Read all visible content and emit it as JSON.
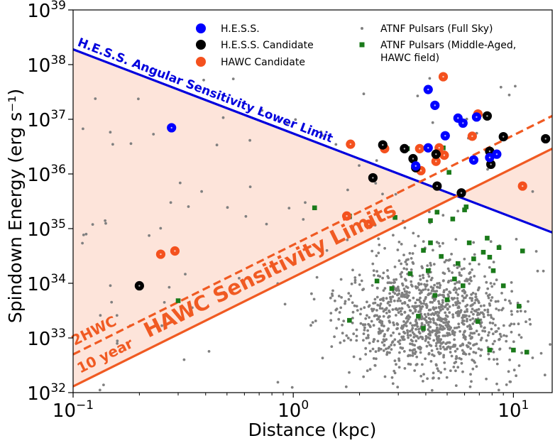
{
  "chart_data": {
    "type": "scatter",
    "xscale": "log",
    "yscale": "log",
    "xlim": [
      0.1,
      15
    ],
    "ylim": [
      1e+32,
      1e+39
    ],
    "xlabel": "Distance (kpc)",
    "ylabel": "Spindown Energy (erg s⁻¹)",
    "xticks": [
      {
        "value": 0.1,
        "base": "10",
        "exp": "−1"
      },
      {
        "value": 1,
        "base": "10",
        "exp": "0"
      },
      {
        "value": 10,
        "base": "10",
        "exp": "1"
      }
    ],
    "yticks": [
      {
        "value": 1e+32,
        "base": "10",
        "exp": "32"
      },
      {
        "value": 1e+33,
        "base": "10",
        "exp": "33"
      },
      {
        "value": 1e+34,
        "base": "10",
        "exp": "34"
      },
      {
        "value": 1e+35,
        "base": "10",
        "exp": "35"
      },
      {
        "value": 1e+36,
        "base": "10",
        "exp": "36"
      },
      {
        "value": 1e+37,
        "base": "10",
        "exp": "37"
      },
      {
        "value": 1e+38,
        "base": "10",
        "exp": "38"
      },
      {
        "value": 1e+39,
        "base": "10",
        "exp": "39"
      }
    ],
    "legend": {
      "placement": "top",
      "entries": [
        {
          "label": "H.E.S.S.",
          "marker": "circle",
          "color": "#0000ff"
        },
        {
          "label": "H.E.S.S. Candidate",
          "marker": "circle",
          "color": "#000000"
        },
        {
          "label": "HAWC Candidate",
          "marker": "circle",
          "color": "#f4511e"
        },
        {
          "label": "ATNF Pulsars (Full Sky)",
          "marker": "dot",
          "color": "#808080"
        },
        {
          "label": "ATNF Pulsars (Middle-Aged,",
          "label2": "HAWC field)",
          "marker": "square",
          "color": "#1a7a1a"
        }
      ]
    },
    "lines": [
      {
        "name": "H.E.S.S. Angular Sensitivity Lower Limit",
        "label": "H.E.S.S. Angular Sensitivity Lower Limit",
        "color": "#0000dd",
        "style": "solid",
        "x": [
          0.1,
          15
        ],
        "y": [
          1.9e+38,
          8.5e+34
        ]
      },
      {
        "name": "2HWC",
        "label": "2HWC",
        "color": "#f05a22",
        "style": "dashed",
        "x": [
          0.1,
          15
        ],
        "y": [
          5e+32,
          1.15e+37
        ]
      },
      {
        "name": "10 year",
        "label": "10 year",
        "color": "#f05a22",
        "style": "solid",
        "x": [
          0.1,
          15
        ],
        "y": [
          1.3e+32,
          2.9e+36
        ]
      }
    ],
    "annotations": [
      {
        "text": "HAWC Sensitivity Limits",
        "color": "#f05a22"
      }
    ],
    "shaded_region": {
      "color": "#fde4da",
      "between": [
        "H.E.S.S. Angular Sensitivity Lower Limit",
        "10 year"
      ]
    },
    "series": [
      {
        "name": "H.E.S.S.",
        "color": "#0000ff",
        "points": [
          [
            0.28,
            7e+36
          ],
          [
            4.1,
            3.5e+37
          ],
          [
            4.4,
            1.8e+37
          ],
          [
            5.9,
            8.5e+36
          ],
          [
            5.6,
            1.05e+37
          ],
          [
            4.9,
            5e+36
          ],
          [
            4.1,
            3e+36
          ],
          [
            6.8,
            1.1e+37
          ],
          [
            6.6,
            1.8e+36
          ],
          [
            8.4,
            2.3e+36
          ],
          [
            7.8,
            2e+36
          ],
          [
            3.6,
            1.4e+36
          ]
        ]
      },
      {
        "name": "H.E.S.S. Candidate",
        "color": "#000000",
        "points": [
          [
            0.2,
            9e+33
          ],
          [
            2.3,
            8.5e+35
          ],
          [
            2.55,
            3.4e+36
          ],
          [
            3.2,
            2.9e+36
          ],
          [
            3.5,
            1.9e+36
          ],
          [
            3.6,
            1.3e+36
          ],
          [
            4.45,
            2.3e+36
          ],
          [
            4.5,
            6e+35
          ],
          [
            5.8,
            4.5e+35
          ],
          [
            7.6,
            1.15e+37
          ],
          [
            7.8,
            2.6e+36
          ],
          [
            7.9,
            1.5e+36
          ],
          [
            9.0,
            4.8e+36
          ],
          [
            14.0,
            4.4e+36
          ]
        ]
      },
      {
        "name": "HAWC Candidate",
        "color": "#f4511e",
        "points": [
          [
            0.25,
            3.4e+34
          ],
          [
            0.29,
            3.9e+34
          ],
          [
            1.75,
            1.7e+35
          ],
          [
            1.82,
            3.5e+36
          ],
          [
            2.2,
            1.2e+35
          ],
          [
            2.6,
            2.9e+36
          ],
          [
            3.75,
            2.9e+36
          ],
          [
            3.8,
            1.15e+36
          ],
          [
            4.6,
            3e+36
          ],
          [
            4.45,
            1.7e+36
          ],
          [
            4.8,
            6e+37
          ],
          [
            4.85,
            2.2e+36
          ],
          [
            6.5,
            4.9e+36
          ],
          [
            6.9,
            1.25e+37
          ],
          [
            11.0,
            6e+35
          ]
        ]
      },
      {
        "name": "ATNF Pulsars (Middle-Aged, HAWC field)",
        "color": "#1a7a1a",
        "points": [
          [
            0.25,
            3.3e+34
          ],
          [
            0.3,
            4.8e+33
          ],
          [
            1.25,
            2.4e+35
          ],
          [
            1.8,
            1.7e+35
          ],
          [
            1.8,
            2.1e+33
          ],
          [
            2.4,
            1.1e+34
          ],
          [
            2.9,
            1.6e+35
          ],
          [
            3.4,
            1.5e+34
          ],
          [
            3.7,
            2.5e+33
          ],
          [
            3.9,
            4e+34
          ],
          [
            4.1,
            1.7e+34
          ],
          [
            4.2,
            1.4e+35
          ],
          [
            4.5,
            2e+35
          ],
          [
            4.7,
            3.1e+34
          ],
          [
            5.0,
            5e+33
          ],
          [
            5.3,
            1.5e+35
          ],
          [
            5.6,
            2.3e+34
          ],
          [
            6.0,
            2.2e+35
          ],
          [
            6.3,
            5.5e+34
          ],
          [
            6.6,
            2.8e+34
          ],
          [
            6.9,
            2e+33
          ],
          [
            7.3,
            3.7e+34
          ],
          [
            7.6,
            6.7e+34
          ],
          [
            8.1,
            1.7e+34
          ],
          [
            8.6,
            4.5e+34
          ],
          [
            9.0,
            9e+33
          ],
          [
            10.0,
            6e+32
          ],
          [
            10.6,
            3.8e+33
          ],
          [
            11.0,
            3.9e+34
          ],
          [
            11.5,
            5.5e+32
          ],
          [
            5.1,
            1.07e+36
          ],
          [
            3.3,
            2.9e+36
          ],
          [
            4.8,
            3e+36
          ],
          [
            6.1,
            2.5e+35
          ],
          [
            7.8,
            3e+34
          ],
          [
            4.4,
            6e+33
          ],
          [
            5.9,
            9e+33
          ],
          [
            7.8,
            6e+32
          ],
          [
            3.9,
            1.5e+33
          ],
          [
            2.8,
            8e+33
          ],
          [
            4.2,
            5.5e+34
          ],
          [
            5.4,
            1.2e+34
          ]
        ]
      }
    ]
  }
}
